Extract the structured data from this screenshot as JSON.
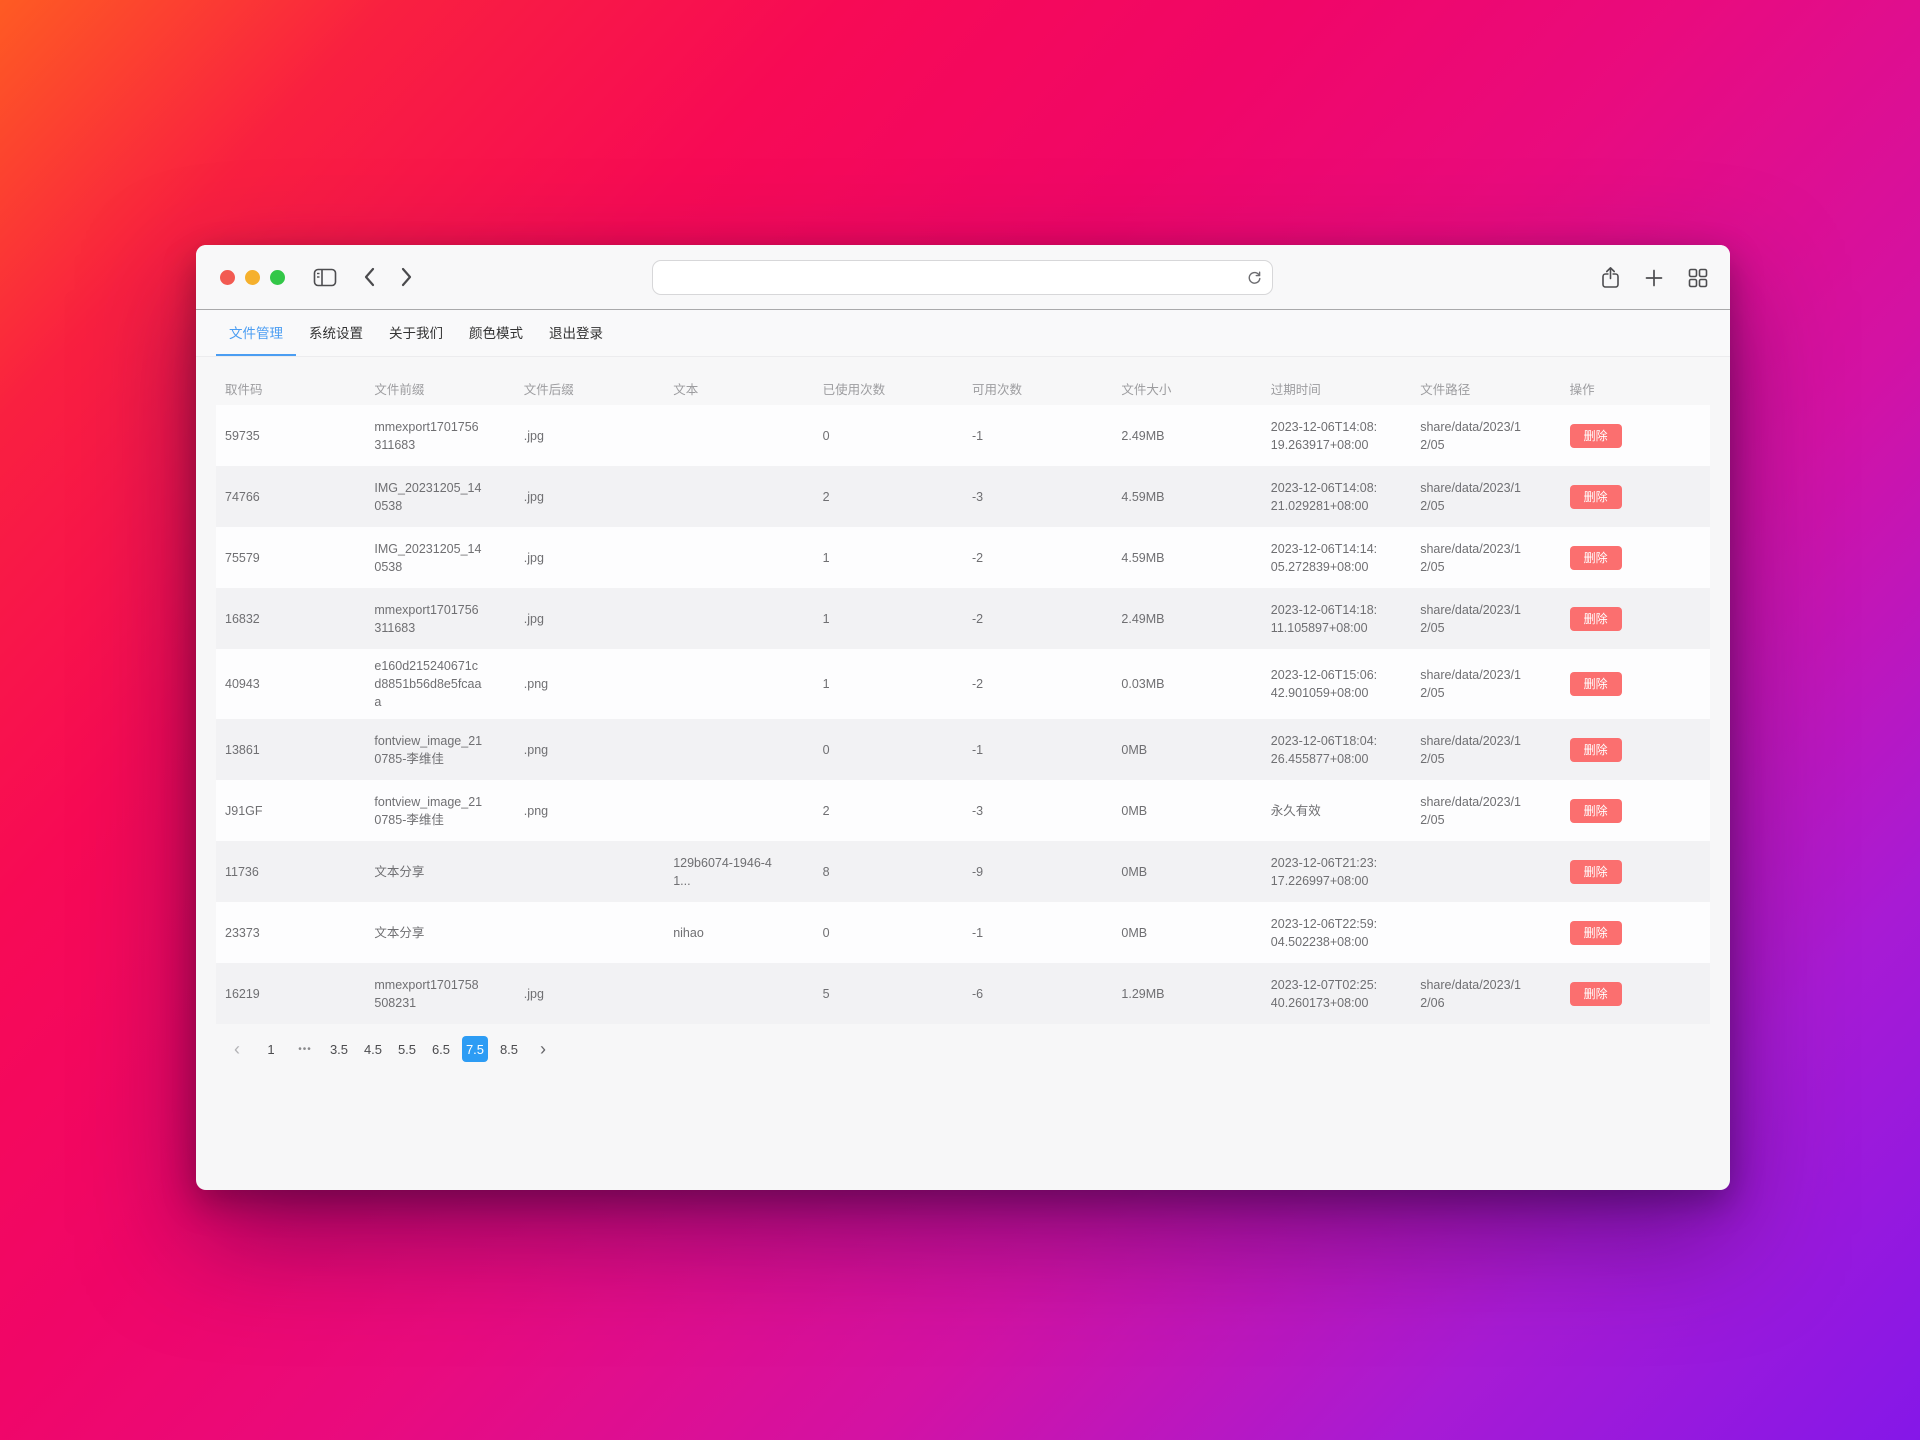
{
  "colors": {
    "accent_blue": "#2d9cf4",
    "tab_active_blue": "#4b9df2",
    "danger_red": "#fb6f6f",
    "traffic_red": "#f25a52",
    "traffic_yellow": "#f5b02d",
    "traffic_green": "#33c748"
  },
  "browser": {
    "url": {
      "value": ""
    },
    "toolbar_icons": [
      "sidebar-toggle-icon",
      "back-icon",
      "forward-icon",
      "reload-icon",
      "share-icon",
      "new-tab-icon",
      "tab-overview-icon"
    ]
  },
  "nav": {
    "tabs": [
      {
        "label": "文件管理",
        "active": true
      },
      {
        "label": "系统设置",
        "active": false
      },
      {
        "label": "关于我们",
        "active": false
      },
      {
        "label": "颜色模式",
        "active": false
      },
      {
        "label": "退出登录",
        "active": false
      }
    ]
  },
  "table": {
    "delete_label": "删除",
    "columns": [
      {
        "key": "code",
        "label": "取件码"
      },
      {
        "key": "prefix",
        "label": "文件前缀"
      },
      {
        "key": "suffix",
        "label": "文件后缀"
      },
      {
        "key": "text",
        "label": "文本"
      },
      {
        "key": "used",
        "label": "已使用次数"
      },
      {
        "key": "available",
        "label": "可用次数"
      },
      {
        "key": "size",
        "label": "文件大小"
      },
      {
        "key": "expire",
        "label": "过期时间"
      },
      {
        "key": "path",
        "label": "文件路径"
      },
      {
        "key": "action",
        "label": "操作"
      }
    ],
    "rows": [
      {
        "code": "59735",
        "prefix": "mmexport1701756311683",
        "suffix": ".jpg",
        "text": "",
        "used": "0",
        "available": "-1",
        "size": "2.49MB",
        "expire": "2023-12-06T14:08:19.263917+08:00",
        "path": "share/data/2023/12/05"
      },
      {
        "code": "74766",
        "prefix": "IMG_20231205_140538",
        "suffix": ".jpg",
        "text": "",
        "used": "2",
        "available": "-3",
        "size": "4.59MB",
        "expire": "2023-12-06T14:08:21.029281+08:00",
        "path": "share/data/2023/12/05"
      },
      {
        "code": "75579",
        "prefix": "IMG_20231205_140538",
        "suffix": ".jpg",
        "text": "",
        "used": "1",
        "available": "-2",
        "size": "4.59MB",
        "expire": "2023-12-06T14:14:05.272839+08:00",
        "path": "share/data/2023/12/05"
      },
      {
        "code": "16832",
        "prefix": "mmexport1701756311683",
        "suffix": ".jpg",
        "text": "",
        "used": "1",
        "available": "-2",
        "size": "2.49MB",
        "expire": "2023-12-06T14:18:11.105897+08:00",
        "path": "share/data/2023/12/05"
      },
      {
        "code": "40943",
        "prefix": "e160d215240671cd8851b56d8e5fcaaa",
        "suffix": ".png",
        "text": "",
        "used": "1",
        "available": "-2",
        "size": "0.03MB",
        "expire": "2023-12-06T15:06:42.901059+08:00",
        "path": "share/data/2023/12/05"
      },
      {
        "code": "13861",
        "prefix": "fontview_image_210785-李维佳",
        "suffix": ".png",
        "text": "",
        "used": "0",
        "available": "-1",
        "size": "0MB",
        "expire": "2023-12-06T18:04:26.455877+08:00",
        "path": "share/data/2023/12/05"
      },
      {
        "code": "J91GF",
        "prefix": "fontview_image_210785-李维佳",
        "suffix": ".png",
        "text": "",
        "used": "2",
        "available": "-3",
        "size": "0MB",
        "expire": "永久有效",
        "path": "share/data/2023/12/05"
      },
      {
        "code": "11736",
        "prefix": "文本分享",
        "suffix": "",
        "text": "129b6074-1946-41...",
        "used": "8",
        "available": "-9",
        "size": "0MB",
        "expire": "2023-12-06T21:23:17.226997+08:00",
        "path": ""
      },
      {
        "code": "23373",
        "prefix": "文本分享",
        "suffix": "",
        "text": "nihao",
        "used": "0",
        "available": "-1",
        "size": "0MB",
        "expire": "2023-12-06T22:59:04.502238+08:00",
        "path": ""
      },
      {
        "code": "16219",
        "prefix": "mmexport1701758508231",
        "suffix": ".jpg",
        "text": "",
        "used": "5",
        "available": "-6",
        "size": "1.29MB",
        "expire": "2023-12-07T02:25:40.260173+08:00",
        "path": "share/data/2023/12/06"
      }
    ]
  },
  "pagination": {
    "prev": "‹",
    "next": "›",
    "items": [
      "1",
      "•••",
      "3.5",
      "4.5",
      "5.5",
      "6.5",
      "7.5",
      "8.5"
    ],
    "active": "7.5"
  }
}
